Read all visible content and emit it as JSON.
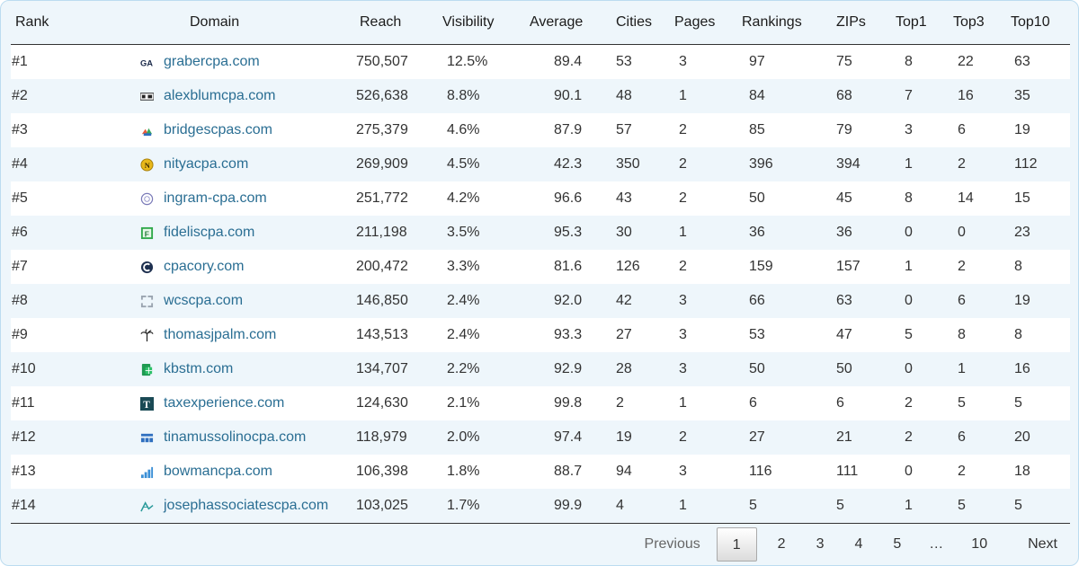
{
  "table": {
    "headers": [
      "Rank",
      "Domain",
      "Reach",
      "Visibility",
      "Average",
      "Cities",
      "Pages",
      "Rankings",
      "ZIPs",
      "Top1",
      "Top3",
      "Top10"
    ],
    "rows": [
      {
        "rank": "#1",
        "domain": "grabercpa.com",
        "icon": "ga-logo-icon",
        "reach": "750,507",
        "visibility": "12.5%",
        "average": "89.4",
        "cities": "53",
        "pages": "3",
        "rankings": "97",
        "zips": "75",
        "top1": "8",
        "top3": "22",
        "top10": "63"
      },
      {
        "rank": "#2",
        "domain": "alexblumcpa.com",
        "icon": "ab-logo-icon",
        "reach": "526,638",
        "visibility": "8.8%",
        "average": "90.1",
        "cities": "48",
        "pages": "1",
        "rankings": "84",
        "zips": "68",
        "top1": "7",
        "top3": "16",
        "top10": "35"
      },
      {
        "rank": "#3",
        "domain": "bridgescpas.com",
        "icon": "colorful-blocks-icon",
        "reach": "275,379",
        "visibility": "4.6%",
        "average": "87.9",
        "cities": "57",
        "pages": "2",
        "rankings": "85",
        "zips": "79",
        "top1": "3",
        "top3": "6",
        "top10": "19"
      },
      {
        "rank": "#4",
        "domain": "nityacpa.com",
        "icon": "n-coin-icon",
        "reach": "269,909",
        "visibility": "4.5%",
        "average": "42.3",
        "cities": "350",
        "pages": "2",
        "rankings": "396",
        "zips": "394",
        "top1": "1",
        "top3": "2",
        "top10": "112"
      },
      {
        "rank": "#5",
        "domain": "ingram-cpa.com",
        "icon": "globe-circle-icon",
        "reach": "251,772",
        "visibility": "4.2%",
        "average": "96.6",
        "cities": "43",
        "pages": "2",
        "rankings": "50",
        "zips": "45",
        "top1": "8",
        "top3": "14",
        "top10": "15"
      },
      {
        "rank": "#6",
        "domain": "fideliscpa.com",
        "icon": "f-green-square-icon",
        "reach": "211,198",
        "visibility": "3.5%",
        "average": "95.3",
        "cities": "30",
        "pages": "1",
        "rankings": "36",
        "zips": "36",
        "top1": "0",
        "top3": "0",
        "top10": "23"
      },
      {
        "rank": "#7",
        "domain": "cpacory.com",
        "icon": "c-circle-icon",
        "reach": "200,472",
        "visibility": "3.3%",
        "average": "81.6",
        "cities": "126",
        "pages": "2",
        "rankings": "159",
        "zips": "157",
        "top1": "1",
        "top3": "2",
        "top10": "8"
      },
      {
        "rank": "#8",
        "domain": "wcscpa.com",
        "icon": "bracket-square-icon",
        "reach": "146,850",
        "visibility": "2.4%",
        "average": "92.0",
        "cities": "42",
        "pages": "3",
        "rankings": "66",
        "zips": "63",
        "top1": "0",
        "top3": "6",
        "top10": "19"
      },
      {
        "rank": "#9",
        "domain": "thomasjpalm.com",
        "icon": "palm-tree-icon",
        "reach": "143,513",
        "visibility": "2.4%",
        "average": "93.3",
        "cities": "27",
        "pages": "3",
        "rankings": "53",
        "zips": "47",
        "top1": "5",
        "top3": "8",
        "top10": "8"
      },
      {
        "rank": "#10",
        "domain": "kbstm.com",
        "icon": "green-spreadsheet-icon",
        "reach": "134,707",
        "visibility": "2.2%",
        "average": "92.9",
        "cities": "28",
        "pages": "3",
        "rankings": "50",
        "zips": "50",
        "top1": "0",
        "top3": "1",
        "top10": "16"
      },
      {
        "rank": "#11",
        "domain": "taxexperience.com",
        "icon": "t-dark-square-icon",
        "reach": "124,630",
        "visibility": "2.1%",
        "average": "99.8",
        "cities": "2",
        "pages": "1",
        "rankings": "6",
        "zips": "6",
        "top1": "2",
        "top3": "5",
        "top10": "5"
      },
      {
        "rank": "#12",
        "domain": "tinamussolinocpa.com",
        "icon": "blue-grid-icon",
        "reach": "118,979",
        "visibility": "2.0%",
        "average": "97.4",
        "cities": "19",
        "pages": "2",
        "rankings": "27",
        "zips": "21",
        "top1": "2",
        "top3": "6",
        "top10": "20"
      },
      {
        "rank": "#13",
        "domain": "bowmancpa.com",
        "icon": "bar-growth-icon",
        "reach": "106,398",
        "visibility": "1.8%",
        "average": "88.7",
        "cities": "94",
        "pages": "3",
        "rankings": "116",
        "zips": "111",
        "top1": "0",
        "top3": "2",
        "top10": "18"
      },
      {
        "rank": "#14",
        "domain": "josephassociatescpa.com",
        "icon": "teal-chart-line-icon",
        "reach": "103,025",
        "visibility": "1.7%",
        "average": "99.9",
        "cities": "4",
        "pages": "1",
        "rankings": "5",
        "zips": "5",
        "top1": "1",
        "top3": "5",
        "top10": "5"
      }
    ]
  },
  "pagination": {
    "previous": "Previous",
    "pages": [
      "1",
      "2",
      "3",
      "4",
      "5"
    ],
    "current": "1",
    "ellipsis": "…",
    "last": "10",
    "next": "Next"
  },
  "colors": {
    "link": "#2a6e93",
    "stripe": "#eef6fb",
    "border": "#bcdcf0"
  }
}
